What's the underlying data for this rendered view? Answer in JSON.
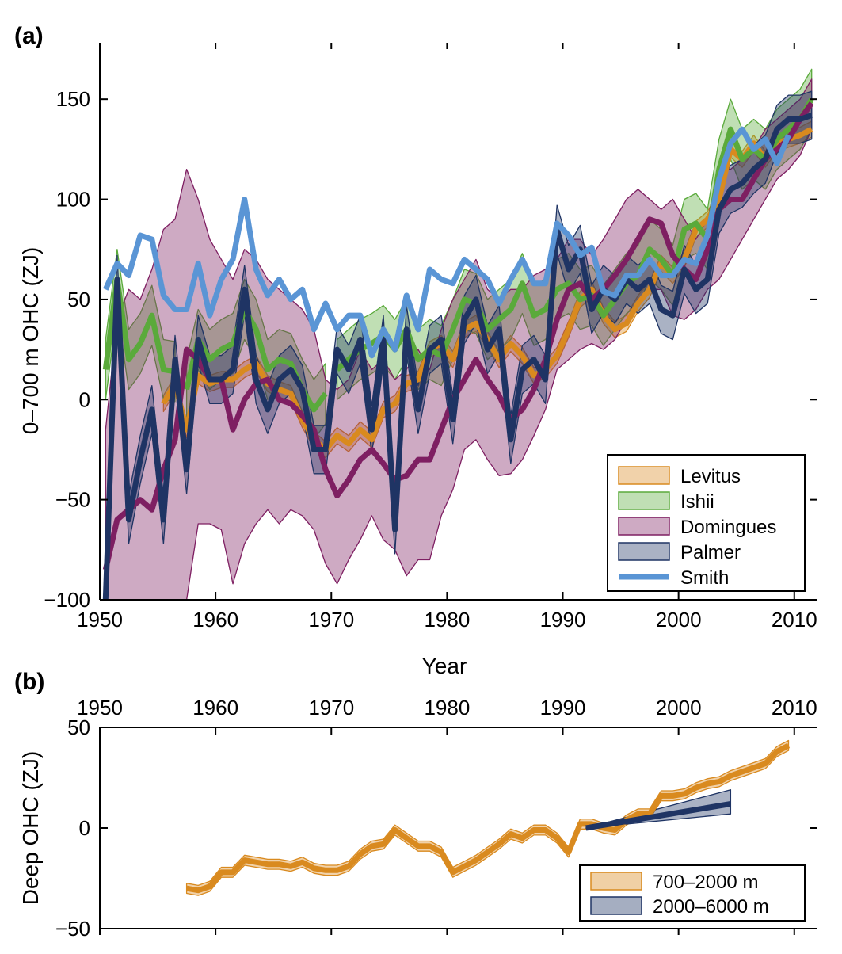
{
  "panel_a": {
    "letter": "(a)",
    "xlabel": "Year",
    "ylabel": "0–700 m OHC (ZJ)",
    "x_ticks": [
      "1950",
      "1960",
      "1970",
      "1980",
      "1990",
      "2000",
      "2010"
    ],
    "y_ticks": [
      "150",
      "100",
      "50",
      "0",
      "−50",
      "−100"
    ],
    "legend": [
      "Levitus",
      "Ishii",
      "Domingues",
      "Palmer",
      "Smith"
    ]
  },
  "panel_b": {
    "letter": "(b)",
    "ylabel": "Deep OHC (ZJ)",
    "x_ticks": [
      "1950",
      "1960",
      "1970",
      "1980",
      "1990",
      "2000",
      "2010"
    ],
    "y_ticks": [
      "50",
      "0",
      "−50"
    ],
    "legend": [
      "700–2000 m",
      "2000–6000 m"
    ]
  },
  "chart_data": [
    {
      "type": "line",
      "title": "",
      "xlabel": "Year",
      "ylabel": "0–700 m OHC (ZJ)",
      "xlim": [
        1950,
        2012
      ],
      "ylim": [
        -100,
        175
      ],
      "grid": false,
      "legend_position": "bottom-right",
      "colors": {
        "Levitus": "#d98a1f",
        "Ishii": "#5aaa3b",
        "Domingues": "#7e1f62",
        "Palmer": "#1f3464",
        "Smith": "#5a95d5"
      },
      "series": [
        {
          "name": "Levitus",
          "x": [
            1955.5,
            1956.5,
            1957.5,
            1958.5,
            1959.5,
            1960.5,
            1961.5,
            1962.5,
            1963.5,
            1964.5,
            1965.5,
            1966.5,
            1967.5,
            1968.5,
            1969.5,
            1970.5,
            1971.5,
            1972.5,
            1973.5,
            1974.5,
            1975.5,
            1976.5,
            1977.5,
            1978.5,
            1979.5,
            1980.5,
            1981.5,
            1982.5,
            1983.5,
            1984.5,
            1985.5,
            1986.5,
            1987.5,
            1988.5,
            1989.5,
            1990.5,
            1991.5,
            1992.5,
            1993.5,
            1994.5,
            1995.5,
            1996.5,
            1997.5,
            1998.5,
            1999.5,
            2000.5,
            2001.5,
            2002.5,
            2003.5,
            2004.5,
            2005.5,
            2006.5,
            2007.5,
            2008.5,
            2009.5,
            2010.5,
            2011.5
          ],
          "y": [
            -2,
            8,
            -15,
            12,
            8,
            10,
            10,
            15,
            18,
            8,
            5,
            3,
            -10,
            -20,
            -25,
            -18,
            -22,
            -15,
            -20,
            -5,
            -2,
            8,
            10,
            25,
            28,
            20,
            35,
            38,
            30,
            20,
            28,
            22,
            12,
            15,
            22,
            35,
            50,
            55,
            42,
            35,
            38,
            48,
            55,
            68,
            62,
            70,
            85,
            90,
            100,
            125,
            120,
            128,
            120,
            128,
            130,
            132,
            135
          ],
          "band": 4
        },
        {
          "name": "Ishii",
          "x": [
            1950.5,
            1951.5,
            1952.5,
            1953.5,
            1954.5,
            1955.5,
            1956.5,
            null,
            1957.5,
            1958.5,
            1959.5,
            1960.5,
            1961.5,
            1962.5,
            1963.5,
            1964.5,
            1965.5,
            1966.5,
            1967.5,
            1968.5,
            1969.5,
            null,
            1970.5,
            1971.5,
            1972.5,
            1973.5,
            1974.5,
            1975.5,
            1976.5,
            1977.5,
            1978.5,
            1979.5,
            1980.5,
            1981.5,
            1982.5,
            1983.5,
            1984.5,
            1985.5,
            1986.5,
            1987.5,
            1988.5,
            1989.5,
            1990.5,
            1991.5,
            1992.5,
            1993.5,
            1994.5,
            1995.5,
            1996.5,
            1997.5,
            1998.5,
            1999.5,
            2000.5,
            2001.5,
            2002.5,
            2003.5,
            2004.5,
            2005.5,
            2006.5,
            2007.5,
            2008.5,
            2009.5,
            2010.5,
            2011.5
          ],
          "y": [
            15,
            60,
            20,
            28,
            42,
            15,
            14,
            null,
            5,
            30,
            20,
            25,
            28,
            45,
            35,
            15,
            20,
            18,
            5,
            -5,
            3,
            null,
            15,
            20,
            25,
            28,
            32,
            25,
            35,
            20,
            25,
            22,
            35,
            50,
            48,
            35,
            40,
            45,
            58,
            42,
            45,
            55,
            58,
            50,
            52,
            42,
            50,
            58,
            62,
            75,
            70,
            62,
            85,
            88,
            80,
            115,
            135,
            120,
            125,
            120,
            130,
            135,
            140,
            150
          ],
          "band": 15
        },
        {
          "name": "Domingues",
          "x": [
            1950.5,
            1951.5,
            1952.5,
            1953.5,
            1954.5,
            1955.5,
            1956.5,
            1957.5,
            1958.5,
            1959.5,
            1960.5,
            1961.5,
            1962.5,
            1963.5,
            1964.5,
            1965.5,
            1966.5,
            1967.5,
            1968.5,
            1969.5,
            1970.5,
            1971.5,
            1972.5,
            1973.5,
            1974.5,
            1975.5,
            1976.5,
            1977.5,
            1978.5,
            1979.5,
            1980.5,
            1981.5,
            1982.5,
            1983.5,
            1984.5,
            1985.5,
            1986.5,
            1987.5,
            1988.5,
            1989.5,
            1990.5,
            1991.5,
            1992.5,
            1993.5,
            1994.5,
            1995.5,
            1996.5,
            1997.5,
            1998.5,
            1999.5,
            2000.5,
            2001.5,
            2002.5,
            2003.5,
            2004.5,
            2005.5,
            2006.5,
            2007.5,
            2008.5,
            2009.5,
            2010.5,
            2011.5
          ],
          "y": [
            -85,
            -60,
            -55,
            -50,
            -55,
            -35,
            -20,
            25,
            20,
            10,
            10,
            -15,
            0,
            8,
            10,
            0,
            -2,
            -8,
            -15,
            -35,
            -48,
            -40,
            -30,
            -25,
            -32,
            -40,
            -38,
            -30,
            -30,
            -15,
            0,
            10,
            20,
            10,
            2,
            -10,
            -5,
            5,
            20,
            40,
            55,
            58,
            50,
            55,
            62,
            70,
            80,
            90,
            88,
            72,
            65,
            60,
            75,
            95,
            100,
            100,
            110,
            120,
            125,
            130,
            140,
            148
          ],
          "lower": [
            -100,
            -100,
            -100,
            -100,
            -100,
            -100,
            -100,
            -100,
            -62,
            -62,
            -65,
            -92,
            -72,
            -62,
            -55,
            -62,
            -55,
            -58,
            -65,
            -82,
            -92,
            -80,
            -70,
            -58,
            -70,
            -75,
            -88,
            -80,
            -80,
            -58,
            -45,
            -25,
            -20,
            -30,
            -38,
            -37,
            -30,
            -18,
            -5,
            15,
            20,
            25,
            28,
            25,
            30,
            40,
            50,
            55,
            55,
            42,
            40,
            45,
            55,
            60,
            70,
            80,
            90,
            100,
            110,
            115,
            122,
            135
          ],
          "upper": [
            -15,
            40,
            55,
            50,
            65,
            85,
            90,
            115,
            100,
            80,
            70,
            60,
            75,
            70,
            60,
            55,
            50,
            45,
            35,
            10,
            5,
            10,
            25,
            15,
            20,
            10,
            15,
            25,
            15,
            35,
            50,
            60,
            70,
            55,
            50,
            55,
            55,
            62,
            65,
            70,
            80,
            80,
            72,
            80,
            90,
            100,
            105,
            100,
            95,
            100,
            90,
            80,
            90,
            115,
            115,
            120,
            125,
            135,
            140,
            145,
            150,
            160
          ]
        },
        {
          "name": "Palmer",
          "x": [
            1950.5,
            1951.5,
            1952.5,
            1953.5,
            1954.5,
            1955.5,
            1956.5,
            1957.5,
            1958.5,
            1959.5,
            1960.5,
            1961.5,
            1962.5,
            1963.5,
            1964.5,
            1965.5,
            1966.5,
            1967.5,
            1968.5,
            1969.5,
            1970.5,
            1971.5,
            1972.5,
            1973.5,
            1974.5,
            1975.5,
            1976.5,
            1977.5,
            1978.5,
            1979.5,
            1980.5,
            1981.5,
            1982.5,
            1983.5,
            1984.5,
            1985.5,
            1986.5,
            1987.5,
            1988.5,
            1989.5,
            1990.5,
            1991.5,
            1992.5,
            1993.5,
            1994.5,
            1995.5,
            1996.5,
            1997.5,
            1998.5,
            1999.5,
            2000.5,
            2001.5,
            2002.5,
            2003.5,
            2004.5,
            2005.5,
            2006.5,
            2007.5,
            2008.5,
            2009.5,
            2010.5,
            2011.5
          ],
          "y": [
            -100,
            60,
            -60,
            -30,
            -5,
            -60,
            20,
            -35,
            30,
            10,
            10,
            15,
            55,
            10,
            -5,
            10,
            15,
            5,
            -25,
            -25,
            25,
            15,
            30,
            -15,
            30,
            -65,
            35,
            -5,
            25,
            30,
            -10,
            40,
            50,
            25,
            35,
            -20,
            15,
            20,
            10,
            85,
            65,
            75,
            45,
            55,
            50,
            60,
            55,
            60,
            45,
            42,
            65,
            55,
            60,
            95,
            105,
            108,
            115,
            120,
            135,
            140,
            140,
            142
          ],
          "band": 12
        },
        {
          "name": "Smith",
          "x": [
            1950.5,
            1951.5,
            1952.5,
            1953.5,
            1954.5,
            1955.5,
            1956.5,
            1957.5,
            1958.5,
            1959.5,
            1960.5,
            1961.5,
            1962.5,
            1963.5,
            1964.5,
            1965.5,
            1966.5,
            1967.5,
            1968.5,
            1969.5,
            1970.5,
            1971.5,
            1972.5,
            1973.5,
            1974.5,
            1975.5,
            1976.5,
            1977.5,
            1978.5,
            1979.5,
            1980.5,
            1981.5,
            1982.5,
            1983.5,
            1984.5,
            1985.5,
            1986.5,
            1987.5,
            1988.5,
            1989.5,
            1990.5,
            1991.5,
            1992.5,
            1993.5,
            1994.5,
            1995.5,
            1996.5,
            1997.5,
            1998.5,
            1999.5,
            2000.5,
            2001.5,
            2002.5,
            2003.5,
            2004.5,
            2005.5,
            2006.5,
            2007.5,
            2008.5,
            2009.5
          ],
          "y": [
            55,
            68,
            62,
            82,
            80,
            52,
            45,
            45,
            68,
            42,
            60,
            70,
            100,
            65,
            52,
            60,
            50,
            55,
            35,
            48,
            35,
            42,
            42,
            22,
            35,
            25,
            52,
            35,
            65,
            60,
            58,
            70,
            65,
            60,
            48,
            60,
            70,
            58,
            58,
            88,
            82,
            72,
            76,
            54,
            52,
            62,
            62,
            70,
            62,
            62,
            70,
            68,
            82,
            110,
            128,
            135,
            125,
            130,
            118,
            132
          ],
          "band": 0
        }
      ]
    },
    {
      "type": "area",
      "title": "",
      "xlabel": "",
      "ylabel": "Deep OHC (ZJ)",
      "xlim": [
        1950,
        2012
      ],
      "ylim": [
        -50,
        50
      ],
      "grid": false,
      "legend_position": "bottom-right",
      "colors": {
        "700–2000 m": "#d98a1f",
        "2000–6000 m": "#1f3464"
      },
      "series": [
        {
          "name": "700–2000 m",
          "x": [
            1957.5,
            1958.5,
            1959.5,
            1960.5,
            1961.5,
            1962.5,
            1963.5,
            1964.5,
            1965.5,
            1966.5,
            1967.5,
            1968.5,
            1969.5,
            1970.5,
            1971.5,
            1972.5,
            1973.5,
            1974.5,
            1975.5,
            1976.5,
            1977.5,
            1978.5,
            1979.5,
            1980.5,
            1981.5,
            1982.5,
            1983.5,
            1984.5,
            1985.5,
            1986.5,
            1987.5,
            1988.5,
            1989.5,
            1990.5,
            1991.5,
            1992.5,
            1993.5,
            1994.5,
            1995.5,
            1996.5,
            1997.5,
            1998.5,
            1999.5,
            2000.5,
            2001.5,
            2002.5,
            2003.5,
            2004.5,
            2005.5,
            2006.5,
            2007.5,
            2008.5,
            2009.5
          ],
          "y": [
            -30,
            -31,
            -29,
            -22,
            -22,
            -16,
            -17,
            -18,
            -18,
            -19,
            -17,
            -20,
            -21,
            -21,
            -19,
            -13,
            -9,
            -8,
            -1,
            -5,
            -9,
            -9,
            -12,
            -22,
            -19,
            -16,
            -12,
            -8,
            -3,
            -5,
            -1,
            -1,
            -5,
            -12,
            2,
            2,
            0,
            -1,
            4,
            7,
            7,
            16,
            16,
            17,
            20,
            22,
            23,
            26,
            28,
            30,
            32,
            38,
            41
          ],
          "band": 2.5
        },
        {
          "name": "2000–6000 m",
          "x": [
            1992,
            2004.5
          ],
          "y": [
            0,
            12
          ],
          "lower": [
            0,
            7
          ],
          "upper": [
            0,
            19
          ]
        }
      ]
    }
  ]
}
